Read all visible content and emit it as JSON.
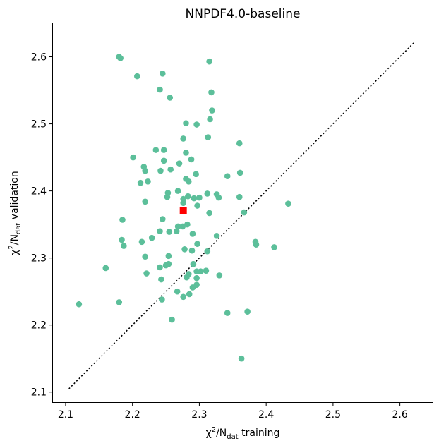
{
  "chart_data": {
    "type": "scatter",
    "title": "NNPDF4.0-baseline",
    "xlabel": {
      "prefix": "χ",
      "sup": "2",
      "mid": "/N",
      "sub": "dat",
      "suffix": " training"
    },
    "ylabel": {
      "prefix": "χ",
      "sup": "2",
      "mid": "/N",
      "sub": "dat",
      "suffix": " validation"
    },
    "xlim": [
      2.08,
      2.65
    ],
    "ylim": [
      2.085,
      2.65
    ],
    "xticks": [
      "2.1",
      "2.2",
      "2.3",
      "2.4",
      "2.5",
      "2.6"
    ],
    "yticks": [
      "2.1",
      "2.2",
      "2.3",
      "2.4",
      "2.5",
      "2.6"
    ],
    "grid": false,
    "colors": {
      "points": "#5cbf9a",
      "mean": "#ff0000",
      "diagonal": "#000000"
    },
    "diagonal": {
      "x": [
        2.105,
        2.622
      ],
      "y": [
        2.105,
        2.622
      ],
      "style": "dotted"
    },
    "mean_point": {
      "x": 2.276,
      "y": 2.371
    },
    "series": [
      {
        "points": [
          [
            2.18,
            2.6
          ],
          [
            2.182,
            2.598
          ],
          [
            2.315,
            2.593
          ],
          [
            2.207,
            2.571
          ],
          [
            2.245,
            2.575
          ],
          [
            2.241,
            2.551
          ],
          [
            2.318,
            2.547
          ],
          [
            2.256,
            2.539
          ],
          [
            2.319,
            2.52
          ],
          [
            2.316,
            2.507
          ],
          [
            2.28,
            2.501
          ],
          [
            2.296,
            2.499
          ],
          [
            2.313,
            2.48
          ],
          [
            2.276,
            2.478
          ],
          [
            2.36,
            2.471
          ],
          [
            2.235,
            2.461
          ],
          [
            2.247,
            2.461
          ],
          [
            2.28,
            2.457
          ],
          [
            2.201,
            2.45
          ],
          [
            2.288,
            2.447
          ],
          [
            2.247,
            2.445
          ],
          [
            2.27,
            2.441
          ],
          [
            2.217,
            2.436
          ],
          [
            2.219,
            2.43
          ],
          [
            2.242,
            2.43
          ],
          [
            2.257,
            2.432
          ],
          [
            2.295,
            2.425
          ],
          [
            2.342,
            2.422
          ],
          [
            2.361,
            2.427
          ],
          [
            2.28,
            2.418
          ],
          [
            2.223,
            2.414
          ],
          [
            2.212,
            2.412
          ],
          [
            2.284,
            2.414
          ],
          [
            2.268,
            2.4
          ],
          [
            2.253,
            2.397
          ],
          [
            2.312,
            2.396
          ],
          [
            2.326,
            2.395
          ],
          [
            2.283,
            2.392
          ],
          [
            2.252,
            2.391
          ],
          [
            2.3,
            2.39
          ],
          [
            2.292,
            2.389
          ],
          [
            2.276,
            2.388
          ],
          [
            2.329,
            2.39
          ],
          [
            2.36,
            2.391
          ],
          [
            2.219,
            2.384
          ],
          [
            2.276,
            2.382
          ],
          [
            2.297,
            2.378
          ],
          [
            2.315,
            2.367
          ],
          [
            2.367,
            2.368
          ],
          [
            2.433,
            2.381
          ],
          [
            2.245,
            2.358
          ],
          [
            2.185,
            2.357
          ],
          [
            2.282,
            2.35
          ],
          [
            2.275,
            2.347
          ],
          [
            2.268,
            2.347
          ],
          [
            2.241,
            2.34
          ],
          [
            2.255,
            2.339
          ],
          [
            2.266,
            2.34
          ],
          [
            2.29,
            2.336
          ],
          [
            2.326,
            2.333
          ],
          [
            2.229,
            2.33
          ],
          [
            2.184,
            2.327
          ],
          [
            2.214,
            2.324
          ],
          [
            2.384,
            2.324
          ],
          [
            2.385,
            2.32
          ],
          [
            2.297,
            2.321
          ],
          [
            2.187,
            2.318
          ],
          [
            2.412,
            2.316
          ],
          [
            2.278,
            2.313
          ],
          [
            2.289,
            2.311
          ],
          [
            2.312,
            2.31
          ],
          [
            2.254,
            2.303
          ],
          [
            2.219,
            2.302
          ],
          [
            2.16,
            2.285
          ],
          [
            2.254,
            2.291
          ],
          [
            2.25,
            2.289
          ],
          [
            2.241,
            2.286
          ],
          [
            2.291,
            2.291
          ],
          [
            2.296,
            2.28
          ],
          [
            2.302,
            2.28
          ],
          [
            2.31,
            2.281
          ],
          [
            2.221,
            2.277
          ],
          [
            2.284,
            2.276
          ],
          [
            2.33,
            2.274
          ],
          [
            2.296,
            2.27
          ],
          [
            2.281,
            2.271
          ],
          [
            2.243,
            2.268
          ],
          [
            2.296,
            2.26
          ],
          [
            2.29,
            2.256
          ],
          [
            2.267,
            2.25
          ],
          [
            2.285,
            2.246
          ],
          [
            2.276,
            2.242
          ],
          [
            2.244,
            2.238
          ],
          [
            2.12,
            2.231
          ],
          [
            2.18,
            2.234
          ],
          [
            2.372,
            2.22
          ],
          [
            2.342,
            2.218
          ],
          [
            2.259,
            2.208
          ],
          [
            2.363,
            2.15
          ]
        ]
      }
    ]
  }
}
